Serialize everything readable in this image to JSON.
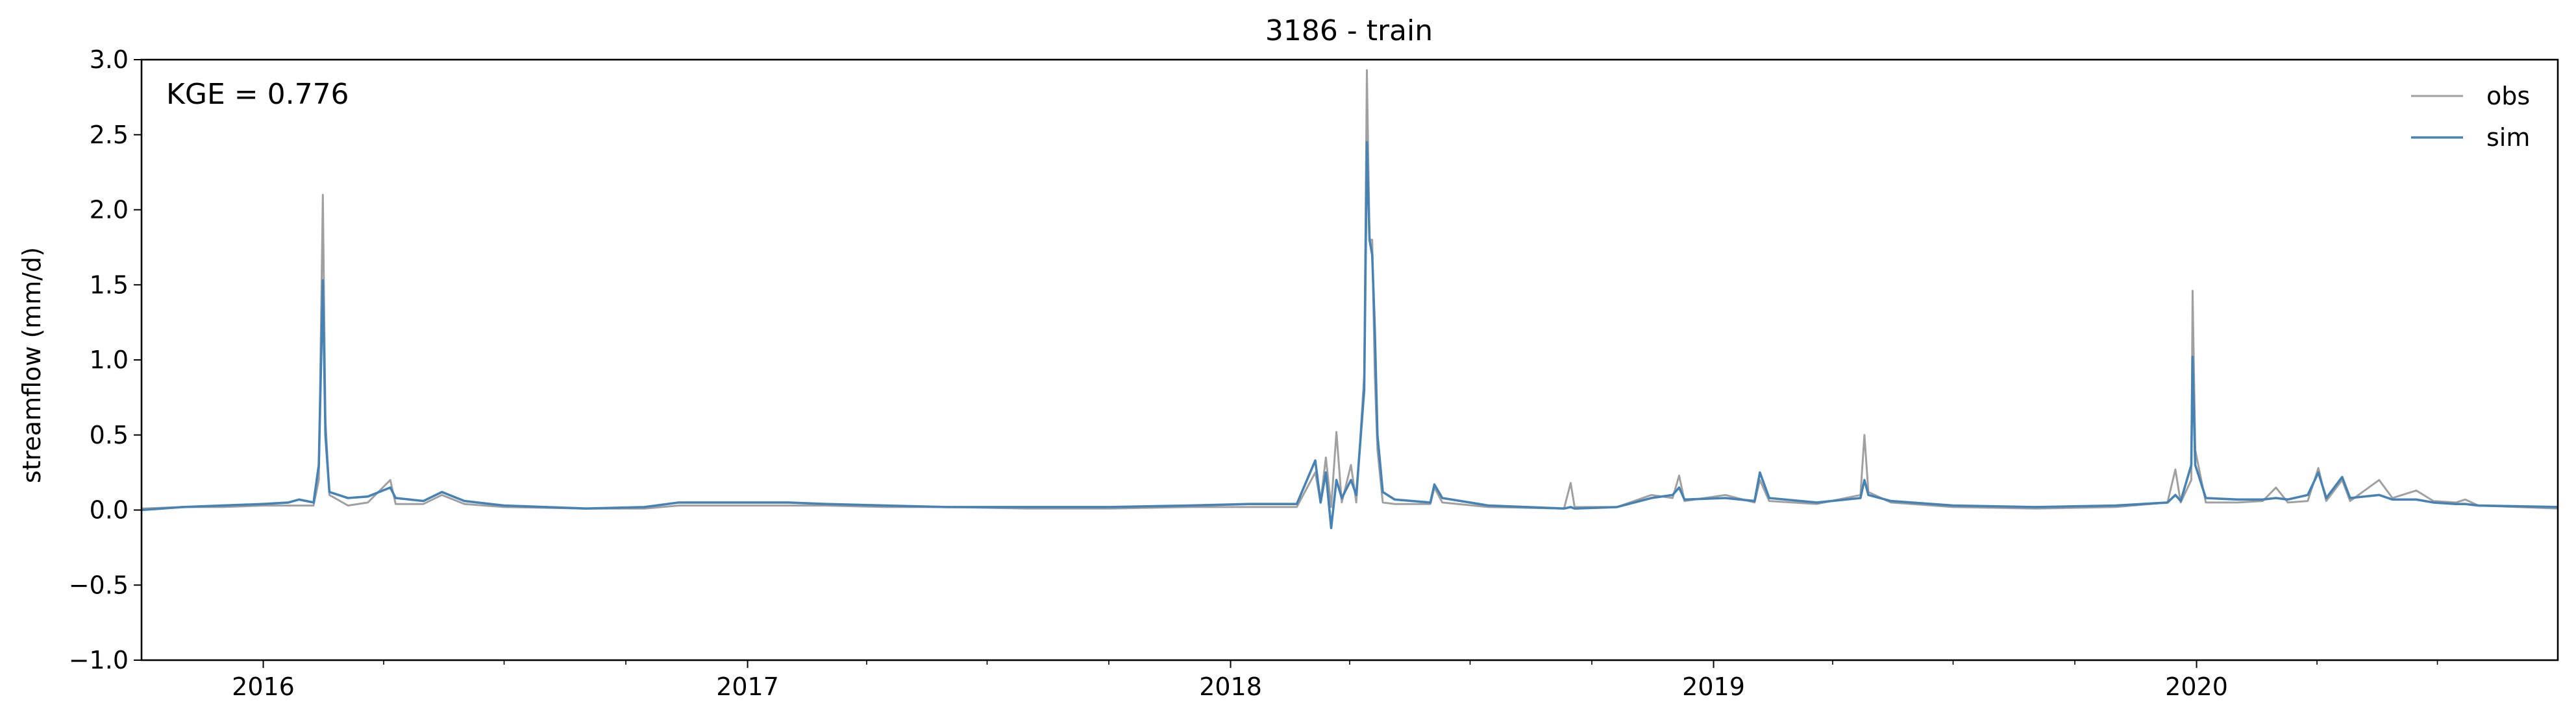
{
  "chart_data": {
    "type": "line",
    "title": "3186 - train",
    "xlabel": "",
    "ylabel": "streamflow (mm/d)",
    "annotation": "KGE = 0.776",
    "xlim": [
      "2015-10-01",
      "2020-09-30"
    ],
    "ylim": [
      -1.0,
      3.0
    ],
    "yticks": [
      -1.0,
      -0.5,
      0.0,
      0.5,
      1.0,
      1.5,
      2.0,
      2.5,
      3.0
    ],
    "ytick_labels": [
      "−1.0",
      "−0.5",
      "0.0",
      "0.5",
      "1.0",
      "1.5",
      "2.0",
      "2.5",
      "3.0"
    ],
    "xticks": [
      "2016-01-01",
      "2017-01-01",
      "2018-01-01",
      "2019-01-01",
      "2020-01-01"
    ],
    "xtick_labels": [
      "2016",
      "2017",
      "2018",
      "2019",
      "2020"
    ],
    "grid": false,
    "legend_position": "top-right",
    "series": [
      {
        "name": "obs",
        "color": "#a0a0a0",
        "points": [
          [
            "2015-10-01",
            0.01
          ],
          [
            "2015-11-01",
            0.02
          ],
          [
            "2015-12-01",
            0.02
          ],
          [
            "2016-01-01",
            0.03
          ],
          [
            "2016-01-20",
            0.03
          ],
          [
            "2016-02-08",
            0.03
          ],
          [
            "2016-02-12",
            0.2
          ],
          [
            "2016-02-15",
            2.1
          ],
          [
            "2016-02-17",
            0.6
          ],
          [
            "2016-02-20",
            0.1
          ],
          [
            "2016-03-05",
            0.03
          ],
          [
            "2016-03-20",
            0.05
          ],
          [
            "2016-04-06",
            0.2
          ],
          [
            "2016-04-10",
            0.04
          ],
          [
            "2016-05-01",
            0.04
          ],
          [
            "2016-05-15",
            0.1
          ],
          [
            "2016-06-01",
            0.04
          ],
          [
            "2016-07-01",
            0.02
          ],
          [
            "2016-09-01",
            0.01
          ],
          [
            "2016-10-15",
            0.01
          ],
          [
            "2016-11-10",
            0.03
          ],
          [
            "2016-12-15",
            0.03
          ],
          [
            "2017-02-01",
            0.03
          ],
          [
            "2017-03-01",
            0.03
          ],
          [
            "2017-04-15",
            0.02
          ],
          [
            "2017-06-01",
            0.02
          ],
          [
            "2017-08-01",
            0.01
          ],
          [
            "2017-10-01",
            0.01
          ],
          [
            "2017-12-01",
            0.02
          ],
          [
            "2018-01-15",
            0.02
          ],
          [
            "2018-02-20",
            0.02
          ],
          [
            "2018-03-06",
            0.25
          ],
          [
            "2018-03-10",
            0.05
          ],
          [
            "2018-03-14",
            0.35
          ],
          [
            "2018-03-18",
            0.02
          ],
          [
            "2018-03-22",
            0.52
          ],
          [
            "2018-03-26",
            0.05
          ],
          [
            "2018-04-02",
            0.3
          ],
          [
            "2018-04-06",
            0.05
          ],
          [
            "2018-04-12",
            0.9
          ],
          [
            "2018-04-14",
            2.93
          ],
          [
            "2018-04-16",
            1.8
          ],
          [
            "2018-04-18",
            1.8
          ],
          [
            "2018-04-20",
            0.9
          ],
          [
            "2018-04-22",
            0.4
          ],
          [
            "2018-04-26",
            0.05
          ],
          [
            "2018-05-05",
            0.04
          ],
          [
            "2018-06-01",
            0.04
          ],
          [
            "2018-06-04",
            0.15
          ],
          [
            "2018-06-10",
            0.05
          ],
          [
            "2018-07-15",
            0.02
          ],
          [
            "2018-09-10",
            0.01
          ],
          [
            "2018-09-15",
            0.18
          ],
          [
            "2018-09-18",
            0.02
          ],
          [
            "2018-10-20",
            0.02
          ],
          [
            "2018-11-15",
            0.1
          ],
          [
            "2018-12-01",
            0.08
          ],
          [
            "2018-12-06",
            0.23
          ],
          [
            "2018-12-10",
            0.06
          ],
          [
            "2019-01-10",
            0.1
          ],
          [
            "2019-02-01",
            0.05
          ],
          [
            "2019-02-05",
            0.2
          ],
          [
            "2019-02-12",
            0.06
          ],
          [
            "2019-03-20",
            0.04
          ],
          [
            "2019-04-22",
            0.1
          ],
          [
            "2019-04-25",
            0.5
          ],
          [
            "2019-04-28",
            0.12
          ],
          [
            "2019-05-15",
            0.05
          ],
          [
            "2019-07-01",
            0.02
          ],
          [
            "2019-09-01",
            0.01
          ],
          [
            "2019-11-01",
            0.02
          ],
          [
            "2019-12-10",
            0.05
          ],
          [
            "2019-12-16",
            0.27
          ],
          [
            "2019-12-20",
            0.05
          ],
          [
            "2019-12-28",
            0.2
          ],
          [
            "2019-12-29",
            1.46
          ],
          [
            "2019-12-31",
            0.4
          ],
          [
            "2020-01-08",
            0.05
          ],
          [
            "2020-02-01",
            0.05
          ],
          [
            "2020-02-20",
            0.06
          ],
          [
            "2020-03-01",
            0.15
          ],
          [
            "2020-03-10",
            0.05
          ],
          [
            "2020-03-25",
            0.06
          ],
          [
            "2020-04-02",
            0.28
          ],
          [
            "2020-04-08",
            0.06
          ],
          [
            "2020-04-20",
            0.2
          ],
          [
            "2020-04-26",
            0.06
          ],
          [
            "2020-05-18",
            0.2
          ],
          [
            "2020-05-28",
            0.08
          ],
          [
            "2020-06-15",
            0.13
          ],
          [
            "2020-06-28",
            0.06
          ],
          [
            "2020-07-15",
            0.05
          ],
          [
            "2020-07-22",
            0.07
          ],
          [
            "2020-08-01",
            0.03
          ],
          [
            "2020-09-30",
            0.01
          ]
        ]
      },
      {
        "name": "sim",
        "color": "#4682b4",
        "points": [
          [
            "2015-10-01",
            0.0
          ],
          [
            "2015-11-01",
            0.02
          ],
          [
            "2015-12-01",
            0.03
          ],
          [
            "2016-01-01",
            0.04
          ],
          [
            "2016-01-20",
            0.05
          ],
          [
            "2016-01-28",
            0.07
          ],
          [
            "2016-02-08",
            0.05
          ],
          [
            "2016-02-12",
            0.3
          ],
          [
            "2016-02-15",
            1.53
          ],
          [
            "2016-02-17",
            0.5
          ],
          [
            "2016-02-20",
            0.12
          ],
          [
            "2016-03-05",
            0.08
          ],
          [
            "2016-03-20",
            0.09
          ],
          [
            "2016-04-06",
            0.15
          ],
          [
            "2016-04-10",
            0.08
          ],
          [
            "2016-05-01",
            0.06
          ],
          [
            "2016-05-15",
            0.12
          ],
          [
            "2016-06-01",
            0.06
          ],
          [
            "2016-07-01",
            0.03
          ],
          [
            "2016-09-01",
            0.01
          ],
          [
            "2016-10-15",
            0.02
          ],
          [
            "2016-11-10",
            0.05
          ],
          [
            "2016-12-15",
            0.05
          ],
          [
            "2017-02-01",
            0.05
          ],
          [
            "2017-03-01",
            0.04
          ],
          [
            "2017-04-15",
            0.03
          ],
          [
            "2017-06-01",
            0.02
          ],
          [
            "2017-08-01",
            0.02
          ],
          [
            "2017-10-01",
            0.02
          ],
          [
            "2017-12-01",
            0.03
          ],
          [
            "2018-01-15",
            0.04
          ],
          [
            "2018-02-20",
            0.04
          ],
          [
            "2018-03-06",
            0.33
          ],
          [
            "2018-03-10",
            0.05
          ],
          [
            "2018-03-14",
            0.25
          ],
          [
            "2018-03-18",
            -0.12
          ],
          [
            "2018-03-22",
            0.2
          ],
          [
            "2018-03-26",
            0.08
          ],
          [
            "2018-04-02",
            0.2
          ],
          [
            "2018-04-06",
            0.1
          ],
          [
            "2018-04-12",
            0.8
          ],
          [
            "2018-04-14",
            2.45
          ],
          [
            "2018-04-16",
            1.8
          ],
          [
            "2018-04-18",
            1.7
          ],
          [
            "2018-04-20",
            1.2
          ],
          [
            "2018-04-22",
            0.5
          ],
          [
            "2018-04-26",
            0.12
          ],
          [
            "2018-05-05",
            0.07
          ],
          [
            "2018-06-01",
            0.05
          ],
          [
            "2018-06-04",
            0.17
          ],
          [
            "2018-06-10",
            0.08
          ],
          [
            "2018-07-15",
            0.03
          ],
          [
            "2018-09-10",
            0.01
          ],
          [
            "2018-09-15",
            0.02
          ],
          [
            "2018-09-18",
            0.01
          ],
          [
            "2018-10-20",
            0.02
          ],
          [
            "2018-11-15",
            0.08
          ],
          [
            "2018-12-01",
            0.1
          ],
          [
            "2018-12-06",
            0.15
          ],
          [
            "2018-12-10",
            0.07
          ],
          [
            "2019-01-10",
            0.08
          ],
          [
            "2019-02-01",
            0.06
          ],
          [
            "2019-02-05",
            0.25
          ],
          [
            "2019-02-12",
            0.08
          ],
          [
            "2019-03-20",
            0.05
          ],
          [
            "2019-04-22",
            0.08
          ],
          [
            "2019-04-25",
            0.2
          ],
          [
            "2019-04-28",
            0.1
          ],
          [
            "2019-05-15",
            0.06
          ],
          [
            "2019-07-01",
            0.03
          ],
          [
            "2019-09-01",
            0.02
          ],
          [
            "2019-11-01",
            0.03
          ],
          [
            "2019-12-10",
            0.05
          ],
          [
            "2019-12-16",
            0.1
          ],
          [
            "2019-12-20",
            0.06
          ],
          [
            "2019-12-28",
            0.3
          ],
          [
            "2019-12-29",
            1.02
          ],
          [
            "2019-12-31",
            0.3
          ],
          [
            "2020-01-08",
            0.08
          ],
          [
            "2020-02-01",
            0.07
          ],
          [
            "2020-02-20",
            0.07
          ],
          [
            "2020-03-01",
            0.08
          ],
          [
            "2020-03-10",
            0.07
          ],
          [
            "2020-03-25",
            0.1
          ],
          [
            "2020-04-02",
            0.25
          ],
          [
            "2020-04-08",
            0.08
          ],
          [
            "2020-04-20",
            0.22
          ],
          [
            "2020-04-26",
            0.08
          ],
          [
            "2020-05-18",
            0.1
          ],
          [
            "2020-05-28",
            0.07
          ],
          [
            "2020-06-15",
            0.07
          ],
          [
            "2020-06-28",
            0.05
          ],
          [
            "2020-07-15",
            0.04
          ],
          [
            "2020-07-22",
            0.04
          ],
          [
            "2020-08-01",
            0.03
          ],
          [
            "2020-09-30",
            0.02
          ]
        ]
      }
    ]
  }
}
